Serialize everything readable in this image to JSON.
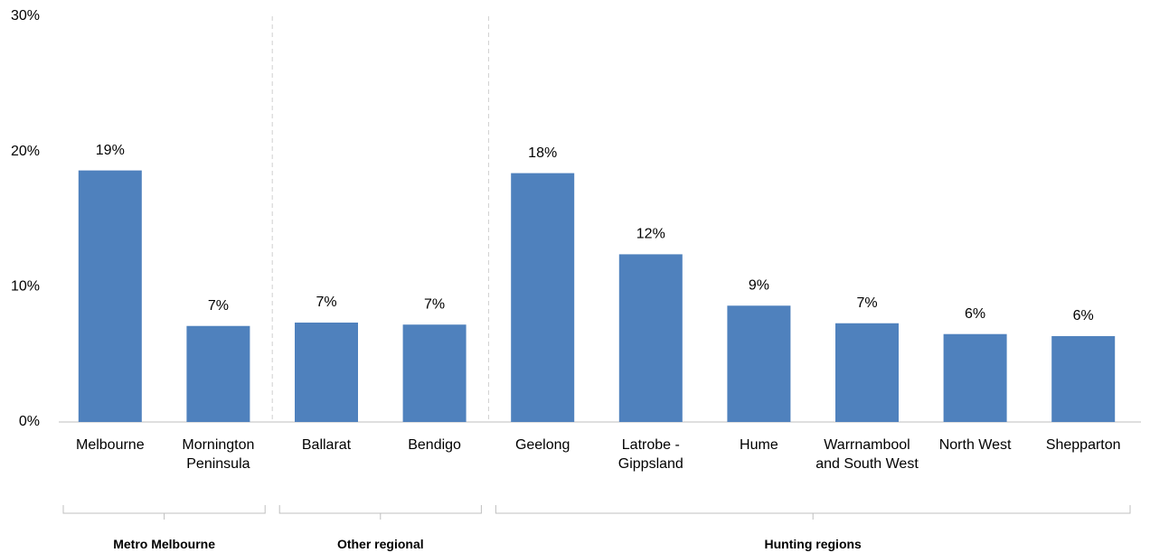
{
  "chart_data": {
    "type": "bar",
    "color": "#4f81bd",
    "ylim": [
      0,
      30
    ],
    "yticks": [
      {
        "value": 0,
        "label": "0%"
      },
      {
        "value": 10,
        "label": "10%"
      },
      {
        "value": 20,
        "label": "20%"
      },
      {
        "value": 30,
        "label": "30%"
      }
    ],
    "groups": [
      {
        "name": "Metro Melbourne",
        "categories": [
          "Melbourne",
          "Mornington Peninsula"
        ],
        "values": [
          18.6,
          7.1
        ],
        "value_labels": [
          "19%",
          "7%"
        ]
      },
      {
        "name": "Other regional",
        "categories": [
          "Ballarat",
          "Bendigo"
        ],
        "values": [
          7.35,
          7.2
        ],
        "value_labels": [
          "7%",
          "7%"
        ]
      },
      {
        "name": "Hunting regions",
        "categories": [
          "Geelong",
          "Latrobe - Gippsland",
          "Hume",
          "Warrnambool and South West",
          "North West",
          "Shepparton"
        ],
        "values": [
          18.4,
          12.4,
          8.6,
          7.3,
          6.5,
          6.35
        ],
        "value_labels": [
          "18%",
          "12%",
          "9%",
          "7%",
          "6%",
          "6%"
        ]
      }
    ]
  }
}
